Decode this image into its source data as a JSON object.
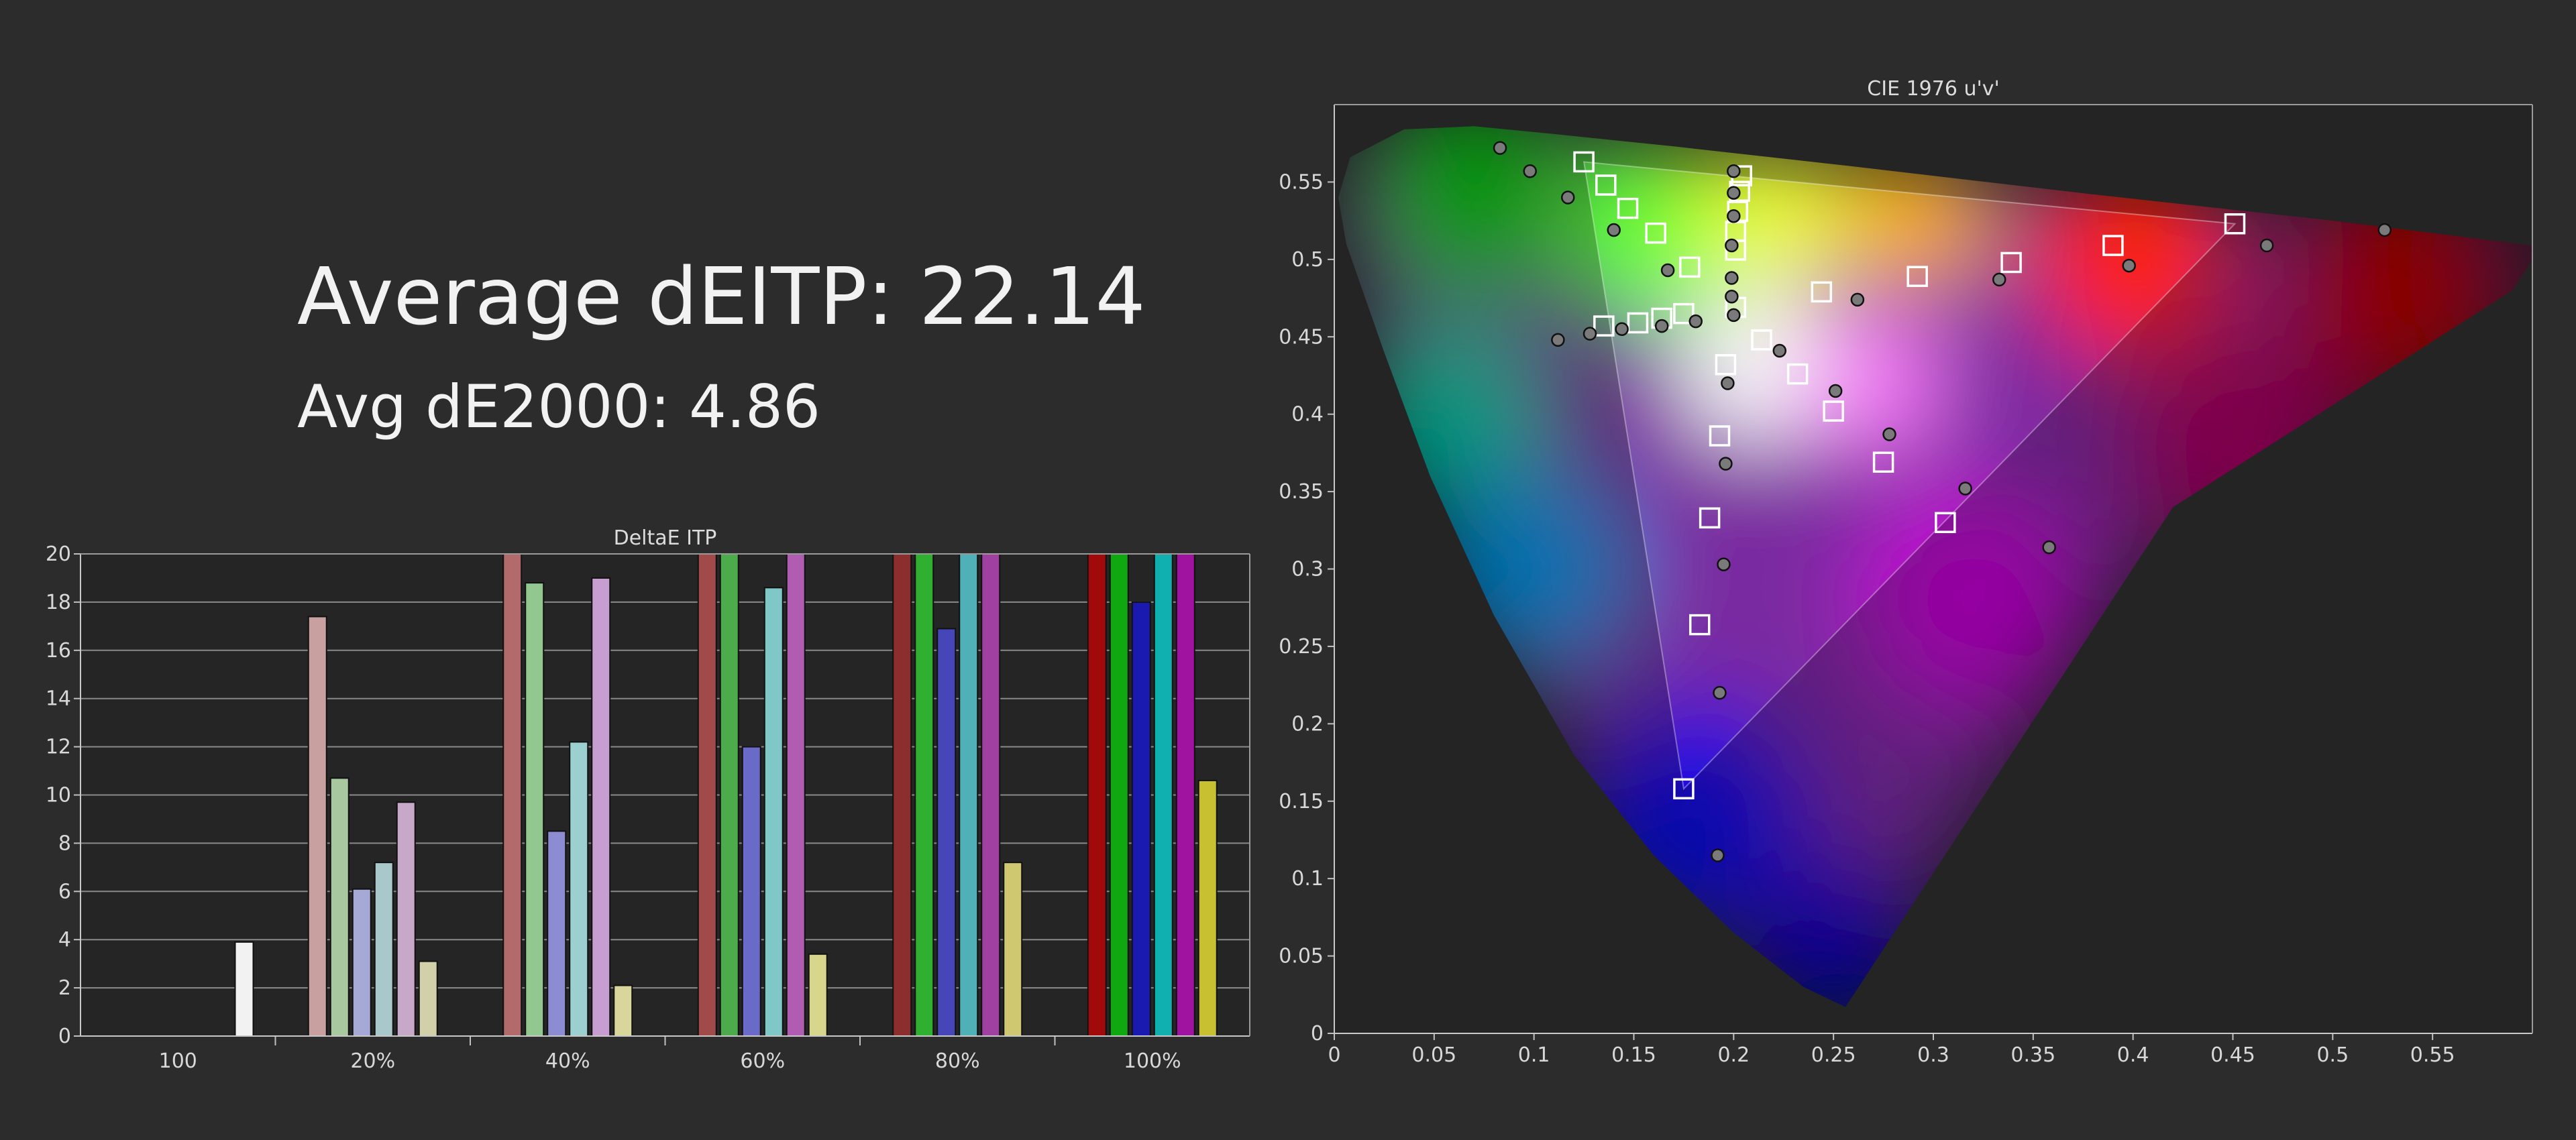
{
  "summary": {
    "avg_itp": "Average dEITP: 22.14",
    "avg_de2000": "Avg dE2000: 4.86"
  },
  "chart_data": [
    {
      "type": "bar",
      "title": "DeltaE ITP",
      "categories": [
        "100",
        "20%",
        "40%",
        "60%",
        "80%",
        "100%"
      ],
      "ylim": [
        0,
        20
      ],
      "yticks": [
        0,
        2,
        4,
        6,
        8,
        10,
        12,
        14,
        16,
        18,
        20
      ],
      "grid": true,
      "groups": [
        {
          "label": "100",
          "bars": [
            {
              "color": "#f2f2f2",
              "value": 3.9
            }
          ]
        },
        {
          "label": "20%",
          "bars": [
            {
              "color": "#c8a0a0",
              "value": 17.4
            },
            {
              "color": "#a8c8a0",
              "value": 10.7
            },
            {
              "color": "#a6a8d6",
              "value": 6.1
            },
            {
              "color": "#a8c8cc",
              "value": 7.2
            },
            {
              "color": "#c8a8c8",
              "value": 9.7
            },
            {
              "color": "#d2d0a8",
              "value": 3.1
            }
          ]
        },
        {
          "label": "40%",
          "bars": [
            {
              "color": "#b26a6a",
              "value": 20
            },
            {
              "color": "#92c890",
              "value": 18.8
            },
            {
              "color": "#8c8cd2",
              "value": 8.5
            },
            {
              "color": "#9cd0d0",
              "value": 12.2
            },
            {
              "color": "#c89ed2",
              "value": 19
            },
            {
              "color": "#d8d69a",
              "value": 2.1
            }
          ]
        },
        {
          "label": "60%",
          "bars": [
            {
              "color": "#a04a4a",
              "value": 20
            },
            {
              "color": "#4cac4c",
              "value": 20
            },
            {
              "color": "#6a6ac8",
              "value": 12
            },
            {
              "color": "#80c8c8",
              "value": 18.6
            },
            {
              "color": "#b05cb0",
              "value": 20
            },
            {
              "color": "#d8d68c",
              "value": 3.4
            }
          ]
        },
        {
          "label": "80%",
          "bars": [
            {
              "color": "#8c2e2e",
              "value": 20
            },
            {
              "color": "#30b030",
              "value": 20
            },
            {
              "color": "#4646b8",
              "value": 16.9
            },
            {
              "color": "#50b0b8",
              "value": 20
            },
            {
              "color": "#a040a0",
              "value": 20
            },
            {
              "color": "#d0c870",
              "value": 7.2
            }
          ]
        },
        {
          "label": "100%",
          "bars": [
            {
              "color": "#a00a0a",
              "value": 20
            },
            {
              "color": "#10a810",
              "value": 20
            },
            {
              "color": "#1a1ab0",
              "value": 18
            },
            {
              "color": "#10b0b0",
              "value": 20
            },
            {
              "color": "#a012a0",
              "value": 20
            },
            {
              "color": "#c8c030",
              "value": 10.6
            }
          ]
        }
      ]
    },
    {
      "type": "scatter",
      "title": "CIE 1976 u'v'",
      "xlim": [
        0,
        0.6
      ],
      "ylim": [
        0,
        0.6
      ],
      "xticks": [
        0,
        0.05,
        0.1,
        0.15,
        0.2,
        0.25,
        0.3,
        0.35,
        0.4,
        0.45,
        0.5,
        0.55
      ],
      "yticks": [
        0,
        0.05,
        0.1,
        0.15,
        0.2,
        0.25,
        0.3,
        0.35,
        0.4,
        0.45,
        0.5,
        0.55
      ],
      "target_gamut": [
        [
          0.451,
          0.523
        ],
        [
          0.125,
          0.563
        ],
        [
          0.175,
          0.158
        ]
      ],
      "targets_squares": [
        [
          0.125,
          0.563
        ],
        [
          0.136,
          0.548
        ],
        [
          0.147,
          0.533
        ],
        [
          0.161,
          0.517
        ],
        [
          0.178,
          0.495
        ],
        [
          0.201,
          0.469
        ],
        [
          0.135,
          0.457
        ],
        [
          0.152,
          0.459
        ],
        [
          0.164,
          0.462
        ],
        [
          0.175,
          0.465
        ],
        [
          0.204,
          0.554
        ],
        [
          0.203,
          0.544
        ],
        [
          0.202,
          0.531
        ],
        [
          0.201,
          0.518
        ],
        [
          0.201,
          0.506
        ],
        [
          0.214,
          0.448
        ],
        [
          0.232,
          0.426
        ],
        [
          0.25,
          0.402
        ],
        [
          0.275,
          0.369
        ],
        [
          0.306,
          0.33
        ],
        [
          0.244,
          0.479
        ],
        [
          0.292,
          0.489
        ],
        [
          0.339,
          0.498
        ],
        [
          0.39,
          0.509
        ],
        [
          0.451,
          0.523
        ],
        [
          0.196,
          0.432
        ],
        [
          0.193,
          0.386
        ],
        [
          0.188,
          0.333
        ],
        [
          0.183,
          0.264
        ],
        [
          0.175,
          0.158
        ]
      ],
      "measured_dots": [
        [
          0.083,
          0.572
        ],
        [
          0.098,
          0.557
        ],
        [
          0.117,
          0.54
        ],
        [
          0.14,
          0.519
        ],
        [
          0.167,
          0.493
        ],
        [
          0.199,
          0.488
        ],
        [
          0.199,
          0.476
        ],
        [
          0.2,
          0.464
        ],
        [
          0.112,
          0.448
        ],
        [
          0.128,
          0.452
        ],
        [
          0.144,
          0.455
        ],
        [
          0.164,
          0.457
        ],
        [
          0.181,
          0.46
        ],
        [
          0.2,
          0.557
        ],
        [
          0.2,
          0.543
        ],
        [
          0.2,
          0.528
        ],
        [
          0.199,
          0.509
        ],
        [
          0.197,
          0.42
        ],
        [
          0.196,
          0.368
        ],
        [
          0.195,
          0.303
        ],
        [
          0.193,
          0.22
        ],
        [
          0.192,
          0.115
        ],
        [
          0.223,
          0.441
        ],
        [
          0.251,
          0.415
        ],
        [
          0.278,
          0.387
        ],
        [
          0.316,
          0.352
        ],
        [
          0.358,
          0.314
        ],
        [
          0.262,
          0.474
        ],
        [
          0.333,
          0.487
        ],
        [
          0.398,
          0.496
        ],
        [
          0.467,
          0.509
        ],
        [
          0.526,
          0.519
        ]
      ]
    }
  ]
}
